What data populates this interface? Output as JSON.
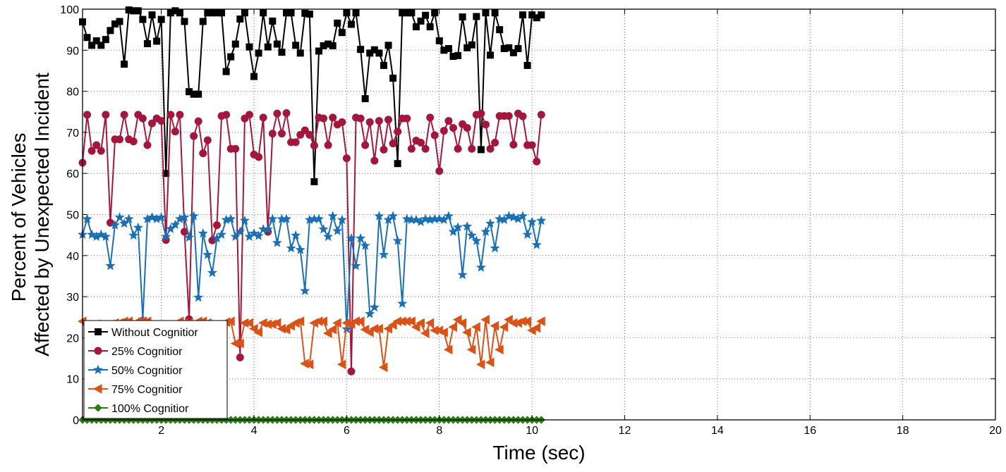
{
  "chart_data": {
    "type": "line",
    "xlabel": "Time (sec)",
    "ylabel_lines": [
      "Percent of Vehicles",
      "Affected by Unexpected Incident"
    ],
    "xlim": [
      0.3,
      20
    ],
    "ylim": [
      0,
      100
    ],
    "xticks": [
      2,
      4,
      6,
      8,
      10,
      12,
      14,
      16,
      18,
      20
    ],
    "yticks": [
      0,
      10,
      20,
      30,
      40,
      50,
      60,
      70,
      80,
      90,
      100
    ],
    "grid": true,
    "legend_position": "bottom-left",
    "x_start": 0.3,
    "x_step": 0.1,
    "series": [
      {
        "name": "Without Cognitior",
        "color": "#000000",
        "marker": "square",
        "values": [
          96.9,
          93.1,
          91.2,
          92.3,
          91.2,
          92.6,
          94.8,
          96.4,
          97.0,
          86.6,
          99.8,
          99.6,
          99.6,
          97.5,
          91.6,
          98.6,
          92.2,
          97.5,
          60.0,
          99.1,
          99.6,
          99.1,
          97.0,
          79.9,
          79.3,
          79.3,
          97.0,
          99.1,
          99.1,
          99.1,
          99.1,
          84.8,
          88.4,
          91.5,
          97.6,
          99.1,
          90.8,
          83.6,
          89.3,
          99.1,
          90.8,
          97.1,
          91.5,
          89.5,
          99.1,
          99.1,
          91.2,
          89.3,
          99.0,
          98.8,
          58.0,
          89.8,
          91.1,
          91.5,
          91.1,
          96.6,
          94.3,
          99.1,
          96.3,
          99.1,
          90.2,
          78.2,
          89.3,
          90.1,
          89.3,
          86.3,
          91.2,
          83.2,
          62.4,
          99.1,
          99.1,
          99.1,
          95.7,
          97.1,
          98.5,
          95.7,
          99.1,
          92.3,
          90.0,
          90.4,
          88.5,
          88.7,
          98.1,
          90.6,
          91.3,
          98.2,
          65.8,
          99.1,
          88.8,
          99.1,
          95.0,
          90.4,
          90.6,
          89.4,
          90.4,
          98.6,
          86.3,
          98.6,
          97.9,
          98.6
        ]
      },
      {
        "name": "25% Cognitior",
        "color": "#a3173d",
        "marker": "circle",
        "values": [
          62.6,
          74.3,
          65.5,
          66.9,
          65.5,
          74.3,
          48.0,
          68.3,
          68.3,
          74.3,
          68.3,
          67.8,
          74.3,
          73.4,
          66.9,
          72.2,
          73.4,
          72.8,
          43.8,
          74.3,
          70.2,
          74.3,
          45.8,
          24.5,
          69.1,
          72.7,
          64.9,
          68.1,
          43.7,
          47.4,
          74.0,
          74.3,
          66.0,
          66.0,
          15.2,
          73.4,
          74.3,
          64.6,
          64.0,
          73.6,
          45.8,
          69.7,
          74.6,
          69.7,
          74.7,
          67.6,
          67.6,
          69.4,
          70.5,
          69.4,
          66.8,
          73.6,
          73.4,
          66.9,
          73.6,
          71.9,
          72.5,
          63.7,
          11.8,
          73.6,
          73.4,
          66.9,
          72.5,
          63.1,
          72.8,
          65.8,
          73.1,
          67.3,
          70.2,
          73.4,
          73.4,
          66.0,
          68.0,
          67.5,
          66.0,
          73.6,
          69.3,
          60.6,
          70.4,
          72.8,
          71.1,
          66.0,
          72.0,
          71.1,
          66.0,
          74.3,
          74.6,
          71.9,
          66.0,
          67.5,
          74.0,
          74.0,
          74.0,
          67.0,
          74.6,
          73.9,
          66.9,
          66.9,
          62.9,
          74.3
        ]
      },
      {
        "name": "50% Cognitior",
        "color": "#1a6fb5",
        "marker": "star",
        "values": [
          45.1,
          48.9,
          45.1,
          44.6,
          45.1,
          44.6,
          37.5,
          47.4,
          49.3,
          47.8,
          48.9,
          44.9,
          46.8,
          24.5,
          48.9,
          49.3,
          48.9,
          49.3,
          44.6,
          46.5,
          47.5,
          48.9,
          49.3,
          44.4,
          49.6,
          29.8,
          45.4,
          40.2,
          35.8,
          44.2,
          45.1,
          48.7,
          48.9,
          44.6,
          45.8,
          48.5,
          44.6,
          45.4,
          44.8,
          46.4,
          46.4,
          48.9,
          43.1,
          48.9,
          48.9,
          41.8,
          44.9,
          41.4,
          31.4,
          48.7,
          48.9,
          48.9,
          46.4,
          44.6,
          49.6,
          46.0,
          48.7,
          22.1,
          44.2,
          37.5,
          44.2,
          42.4,
          25.8,
          27.4,
          49.6,
          40.2,
          48.7,
          49.6,
          43.6,
          28.3,
          48.9,
          48.7,
          48.7,
          48.2,
          48.9,
          48.7,
          48.9,
          48.9,
          48.7,
          49.6,
          45.8,
          46.9,
          35.3,
          47.1,
          44.9,
          43.6,
          37.1,
          45.8,
          47.8,
          41.8,
          48.9,
          48.7,
          49.6,
          49.3,
          48.9,
          49.6,
          45.1,
          48.2,
          42.6,
          48.5
        ]
      },
      {
        "name": "75% Cognitior",
        "color": "#d95319",
        "marker": "triangle-left",
        "values": [
          24.0,
          23.1,
          22.2,
          23.3,
          22.6,
          22.9,
          23.3,
          23.6,
          23.6,
          24.0,
          24.0,
          23.3,
          24.0,
          24.0,
          24.0,
          20.6,
          22.4,
          22.0,
          11.5,
          22.4,
          21.1,
          24.0,
          23.6,
          23.6,
          22.2,
          24.0,
          24.0,
          23.6,
          22.6,
          22.0,
          22.9,
          23.8,
          24.0,
          18.6,
          18.6,
          23.6,
          23.6,
          22.2,
          21.3,
          23.6,
          23.3,
          23.3,
          23.6,
          22.2,
          22.0,
          22.9,
          23.6,
          24.0,
          13.7,
          13.5,
          23.6,
          24.0,
          24.0,
          21.1,
          22.0,
          23.6,
          13.5,
          23.6,
          23.3,
          24.0,
          24.0,
          22.0,
          21.3,
          22.2,
          22.2,
          12.8,
          22.2,
          23.1,
          24.0,
          24.0,
          24.0,
          24.0,
          22.6,
          23.6,
          21.1,
          23.6,
          21.8,
          21.8,
          21.3,
          17.1,
          22.6,
          24.4,
          23.6,
          21.3,
          17.1,
          22.6,
          13.5,
          24.4,
          14.0,
          22.9,
          17.1,
          22.6,
          24.4,
          23.6,
          23.6,
          24.0,
          24.0,
          21.8,
          22.4,
          24.0
        ]
      },
      {
        "name": "100% Cognitior",
        "color": "#2a7d13",
        "marker": "diamond",
        "values": [
          0,
          0,
          0,
          0,
          0,
          0,
          0,
          0,
          0,
          0,
          0,
          0,
          0,
          0,
          0,
          0,
          0,
          0,
          0,
          0,
          0,
          0,
          0,
          0,
          0,
          0,
          0,
          0,
          0,
          0,
          0,
          0,
          0,
          0,
          0,
          0,
          0,
          0,
          0,
          0,
          0,
          0,
          0,
          0,
          0,
          0,
          0,
          0,
          0,
          0,
          0,
          0,
          0,
          0,
          0,
          0,
          0,
          0,
          0,
          0,
          0,
          0,
          0,
          0,
          0,
          0,
          0,
          0,
          0,
          0,
          0,
          0,
          0,
          0,
          0,
          0,
          0,
          0,
          0,
          0,
          0,
          0,
          0,
          0,
          0,
          0,
          0,
          0,
          0,
          0,
          0,
          0,
          0,
          0,
          0,
          0,
          0,
          0,
          0,
          0
        ]
      }
    ]
  }
}
